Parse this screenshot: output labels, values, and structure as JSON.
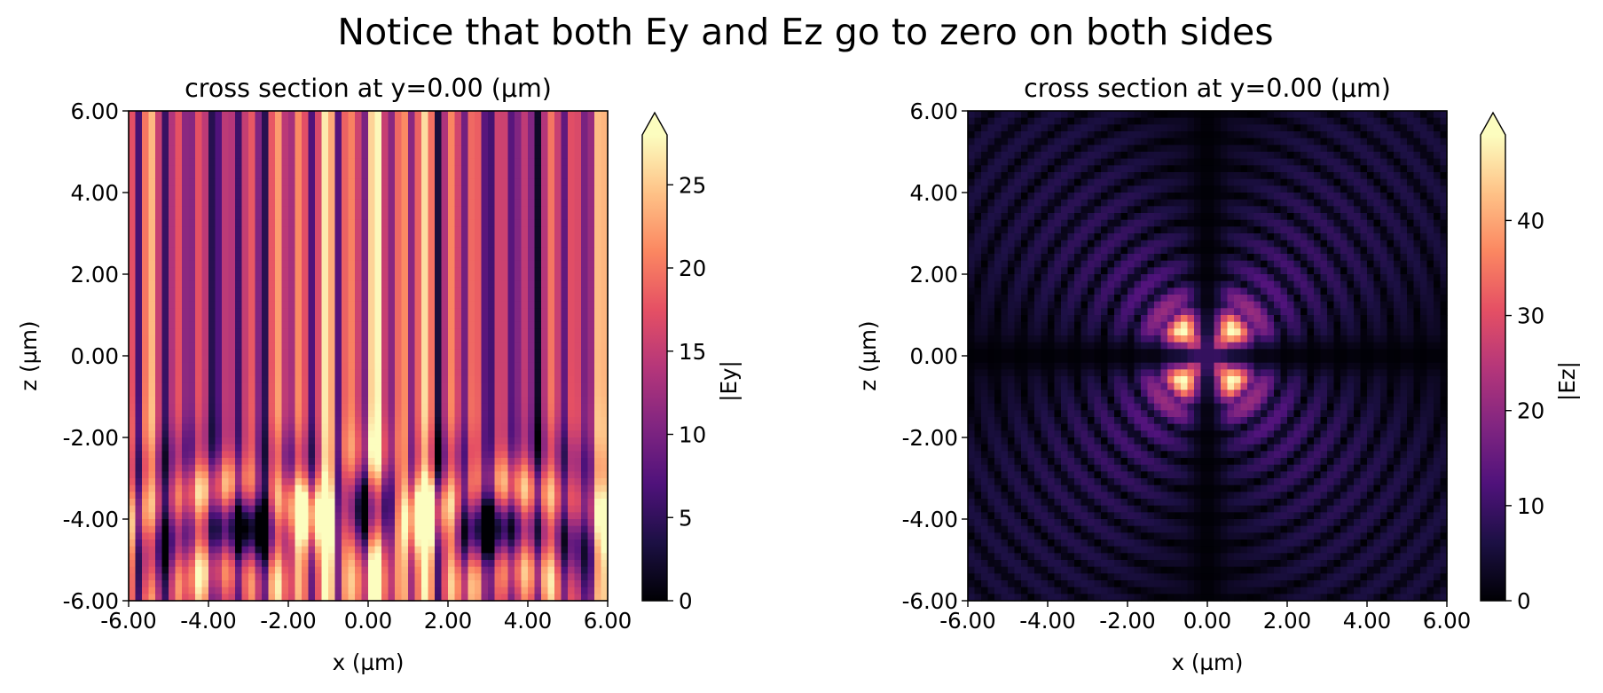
{
  "suptitle": "Notice that both Ey and Ez go to zero on both sides",
  "chart_data": [
    {
      "type": "heatmap",
      "title": "cross section at y=0.00 (µm)",
      "xlabel": "x (µm)",
      "ylabel": "z (µm)",
      "xlim": [
        -6,
        6
      ],
      "ylim": [
        -6,
        6
      ],
      "x_ticks": [
        "-6.00",
        "-4.00",
        "-2.00",
        "0.00",
        "2.00",
        "4.00",
        "6.00"
      ],
      "y_ticks": [
        "-6.00",
        "-4.00",
        "-2.00",
        "0.00",
        "2.00",
        "4.00",
        "6.00"
      ],
      "colorbar": {
        "label": "|Ey|",
        "range": [
          0,
          28
        ],
        "ticks": [
          "0",
          "5",
          "10",
          "15",
          "20",
          "25"
        ],
        "extend": "max",
        "colormap": "magma"
      },
      "field": {
        "component": "Ey",
        "pattern": "vertical standing-wave stripes, brightest near x=±3.8 and x=±1.3, with ripple interference near z=-4"
      }
    },
    {
      "type": "heatmap",
      "title": "cross section at y=0.00 (µm)",
      "xlabel": "x (µm)",
      "ylabel": "z (µm)",
      "xlim": [
        -6,
        6
      ],
      "ylim": [
        -6,
        6
      ],
      "x_ticks": [
        "-6.00",
        "-4.00",
        "-2.00",
        "0.00",
        "2.00",
        "4.00",
        "6.00"
      ],
      "y_ticks": [
        "-6.00",
        "-4.00",
        "-2.00",
        "0.00",
        "2.00",
        "4.00",
        "6.00"
      ],
      "colorbar": {
        "label": "|Ez|",
        "range": [
          0,
          49
        ],
        "ticks": [
          "0",
          "10",
          "20",
          "30",
          "40"
        ],
        "extend": "max",
        "colormap": "magma"
      },
      "field": {
        "component": "Ez",
        "pattern": "saturated four-lobed cross at origin, dark nodal lines along x=0 and z=0, concentric ripples outward"
      }
    }
  ]
}
